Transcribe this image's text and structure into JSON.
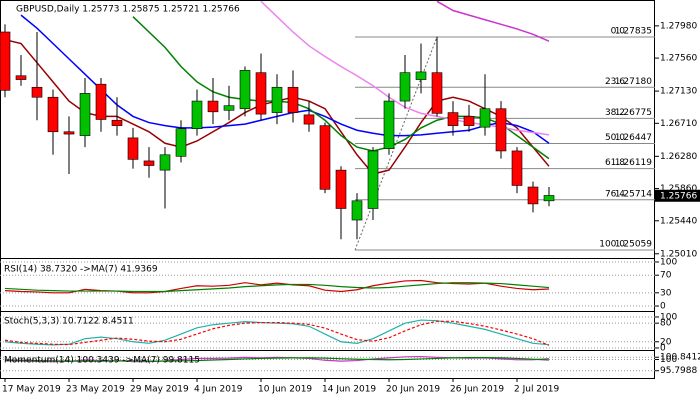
{
  "chart_data": [
    {
      "type": "candlestick",
      "title": "GBPUSD,Daily  1.25773 1.25875 1.25721 1.25766",
      "categories": [
        "17 May 2019",
        null,
        null,
        null,
        "23 May 2019",
        null,
        null,
        null,
        "29 May 2019",
        null,
        null,
        null,
        "4 Jun 2019",
        null,
        null,
        null,
        "10 Jun 2019",
        null,
        null,
        null,
        "14 Jun 2019",
        null,
        null,
        null,
        "20 Jun 2019",
        null,
        null,
        null,
        "26 Jun 2019",
        null,
        null,
        null,
        "2 Jul 2019",
        null,
        null
      ],
      "open": [
        1.279,
        1.2733,
        1.2718,
        1.2705,
        1.266,
        1.2655,
        1.2722,
        1.2675,
        1.2652,
        1.2622,
        1.261,
        1.2628,
        1.2664,
        1.27,
        1.2688,
        1.269,
        1.2737,
        1.2685,
        1.2718,
        1.2682,
        1.2668,
        1.261,
        1.2545,
        1.256,
        1.2638,
        1.27,
        1.2728,
        1.2737,
        1.2685,
        1.268,
        1.2666,
        1.269,
        1.2635,
        1.2588,
        1.257
      ],
      "high": [
        1.28,
        1.276,
        1.279,
        1.2715,
        1.268,
        1.273,
        1.273,
        1.2705,
        1.2665,
        1.264,
        1.264,
        1.2675,
        1.2715,
        1.273,
        1.272,
        1.2745,
        1.2762,
        1.2735,
        1.274,
        1.27,
        1.2672,
        1.2615,
        1.258,
        1.264,
        1.271,
        1.276,
        1.2775,
        1.2784,
        1.27,
        1.2695,
        1.2735,
        1.27,
        1.264,
        1.2595,
        1.2588
      ],
      "low": [
        1.2705,
        1.272,
        1.2675,
        1.263,
        1.2605,
        1.264,
        1.266,
        1.2655,
        1.2612,
        1.26,
        1.256,
        1.262,
        1.2655,
        1.267,
        1.2675,
        1.268,
        1.2675,
        1.267,
        1.2672,
        1.266,
        1.258,
        1.252,
        1.252,
        1.2545,
        1.263,
        1.269,
        1.271,
        1.268,
        1.2655,
        1.266,
        1.2655,
        1.2625,
        1.258,
        1.2555,
        1.2563
      ],
      "close": [
        1.2714,
        1.2728,
        1.2705,
        1.266,
        1.2657,
        1.271,
        1.2676,
        1.2668,
        1.2624,
        1.2616,
        1.263,
        1.2664,
        1.27,
        1.2686,
        1.2694,
        1.274,
        1.2683,
        1.2718,
        1.2685,
        1.267,
        1.2585,
        1.256,
        1.257,
        1.2635,
        1.27,
        1.2737,
        1.2738,
        1.2684,
        1.2668,
        1.2668,
        1.269,
        1.2635,
        1.259,
        1.2566,
        1.2577
      ],
      "up_color": "#00c000",
      "down_color": "#ff0000",
      "series": [
        {
          "color": "#990000",
          "values": [
            1.278,
            1.2775,
            1.275,
            1.2725,
            1.27,
            1.2685,
            1.268,
            1.268,
            1.267,
            1.266,
            1.2645,
            1.264,
            1.2648,
            1.266,
            1.2672,
            1.2685,
            1.2695,
            1.27,
            1.2705,
            1.27,
            1.269,
            1.266,
            1.263,
            1.2605,
            1.261,
            1.264,
            1.2672,
            1.27,
            1.2705,
            1.27,
            1.269,
            1.268,
            1.2665,
            1.264,
            1.2615
          ]
        },
        {
          "color": "#0000ff",
          "values": [
            null,
            1.2812,
            1.2795,
            1.2775,
            1.2755,
            1.2735,
            1.2715,
            1.2695,
            1.268,
            1.2672,
            1.2668,
            1.2665,
            1.2665,
            1.2666,
            1.2668,
            1.267,
            1.2675,
            1.268,
            1.2685,
            1.2688,
            1.268,
            1.267,
            1.2662,
            1.2658,
            1.2655,
            1.2655,
            1.2656,
            1.2658,
            1.266,
            1.2662,
            1.2668,
            1.2672,
            1.2668,
            1.266,
            1.2645
          ]
        },
        {
          "color": "#008000",
          "values": [
            null,
            null,
            null,
            null,
            null,
            null,
            null,
            null,
            1.281,
            1.279,
            1.277,
            1.2745,
            1.2725,
            1.2712,
            1.2705,
            1.2702,
            1.27,
            1.27,
            1.2698,
            1.269,
            1.2675,
            1.2655,
            1.264,
            1.2635,
            1.264,
            1.265,
            1.2665,
            1.2675,
            1.268,
            1.268,
            1.2678,
            1.267,
            1.2655,
            1.264,
            1.2625
          ]
        },
        {
          "color": "#ee82ee",
          "values": [
            null,
            null,
            null,
            null,
            null,
            null,
            null,
            null,
            null,
            null,
            null,
            null,
            null,
            null,
            null,
            null,
            1.283,
            1.281,
            1.279,
            1.2772,
            1.2758,
            1.2745,
            1.2733,
            1.272,
            1.2705,
            1.2692,
            1.2684,
            1.268,
            1.2676,
            1.2672,
            1.2669,
            1.2666,
            1.2662,
            1.2659,
            1.2656
          ]
        },
        {
          "color": "#cc33cc",
          "values": [
            null,
            null,
            null,
            null,
            null,
            null,
            null,
            null,
            null,
            null,
            null,
            null,
            null,
            null,
            null,
            null,
            null,
            null,
            null,
            null,
            null,
            null,
            null,
            null,
            null,
            null,
            null,
            1.283,
            1.2818,
            1.2812,
            1.2806,
            1.28,
            1.2794,
            1.2787,
            1.2778
          ]
        }
      ],
      "fib_levels": [
        {
          "level": "0.0",
          "value": 1.27835
        },
        {
          "level": "23.6",
          "value": 1.2718,
          "label": "1.27180"
        },
        {
          "level": "38.2",
          "value": 1.26775
        },
        {
          "level": "50.0",
          "value": 1.26447
        },
        {
          "level": "61.8",
          "value": 1.26119
        },
        {
          "level": "76.4",
          "value": 1.25714
        },
        {
          "level": "100.0",
          "value": 1.25059
        }
      ],
      "last_price": 1.25766,
      "ylim": [
        1.24955,
        1.28317
      ],
      "yticks": [
        {
          "value": 1.2798,
          "label": "1.27980"
        },
        {
          "value": 1.2756,
          "label": "1.27560"
        },
        {
          "value": 1.2713,
          "label": "1.27130"
        },
        {
          "value": 1.2671,
          "label": "1.26710"
        },
        {
          "value": 1.2628,
          "label": "1.26280"
        },
        {
          "value": 1.2586,
          "label": "1.25860"
        },
        {
          "value": 1.2544,
          "label": "1.25440"
        },
        {
          "value": 1.2501,
          "label": "1.25010"
        }
      ]
    },
    {
      "type": "line",
      "title": "RSI(14) 38.7320 ->MA(7) 41.9369",
      "series": [
        {
          "color": "#cc0000",
          "values": [
            35,
            33,
            32,
            30,
            30,
            38,
            35,
            34,
            30,
            30,
            33,
            40,
            46,
            45,
            47,
            53,
            48,
            52,
            48,
            46,
            36,
            33,
            37,
            46,
            52,
            57,
            58,
            53,
            51,
            50,
            52,
            45,
            40,
            37,
            38.732
          ]
        },
        {
          "color": "#008000",
          "values": [
            40,
            38,
            36,
            35,
            34,
            34,
            34,
            34,
            33,
            33,
            33,
            35,
            37,
            39,
            41,
            44,
            46,
            48,
            49,
            49,
            47,
            44,
            42,
            41,
            42,
            45,
            48,
            51,
            53,
            53,
            52,
            51,
            48,
            45,
            41.9369
          ]
        }
      ],
      "ylim": [
        -9,
        104.5
      ],
      "yticks": [
        100,
        70,
        30,
        0
      ]
    },
    {
      "type": "line",
      "title": "Stoch(5,3,3) 10.7122 8.4511",
      "series": [
        {
          "color": "#20b2aa",
          "values": [
            20,
            15,
            12,
            10,
            12,
            30,
            35,
            30,
            20,
            15,
            25,
            45,
            65,
            75,
            80,
            85,
            82,
            80,
            78,
            70,
            45,
            20,
            15,
            30,
            55,
            80,
            90,
            88,
            80,
            70,
            60,
            45,
            30,
            15,
            10.7122
          ]
        },
        {
          "color": "#ff0000",
          "dashed": true,
          "values": [
            25,
            18,
            15,
            12,
            11,
            18,
            25,
            32,
            28,
            22,
            20,
            28,
            45,
            62,
            73,
            80,
            82,
            82,
            80,
            76,
            64,
            45,
            27,
            22,
            33,
            55,
            75,
            86,
            86,
            79,
            70,
            58,
            45,
            30,
            8.4511
          ]
        }
      ],
      "ylim": [
        -6.5,
        116
      ],
      "yticks": [
        100,
        80,
        20,
        0
      ]
    },
    {
      "type": "line",
      "title": "Momentum(14) 100.3439 ->MA(7) 99.8115",
      "series": [
        {
          "color": "#cc33cc",
          "values": [
            99.5,
            99.4,
            99.3,
            99.2,
            99.3,
            99.8,
            99.6,
            99.5,
            99.2,
            99.2,
            99.5,
            100.0,
            100.4,
            100.4,
            100.5,
            100.8,
            100.6,
            100.8,
            100.6,
            100.4,
            99.7,
            99.4,
            99.6,
            100.2,
            100.6,
            101.0,
            101.1,
            100.8,
            100.6,
            100.5,
            100.6,
            100.2,
            99.9,
            99.9,
            100.3439
          ]
        },
        {
          "color": "#008000",
          "values": [
            99.8,
            99.7,
            99.6,
            99.5,
            99.4,
            99.4,
            99.4,
            99.5,
            99.5,
            99.4,
            99.4,
            99.5,
            99.6,
            99.8,
            100.0,
            100.2,
            100.4,
            100.5,
            100.6,
            100.6,
            100.5,
            100.3,
            100.1,
            100.0,
            99.9,
            100.0,
            100.2,
            100.4,
            100.6,
            100.7,
            100.7,
            100.6,
            100.4,
            100.1,
            99.8115
          ]
        }
      ],
      "ylim": [
        93.08,
        103.17
      ],
      "yticks": [
        100.8412,
        100,
        95.7988
      ]
    }
  ]
}
